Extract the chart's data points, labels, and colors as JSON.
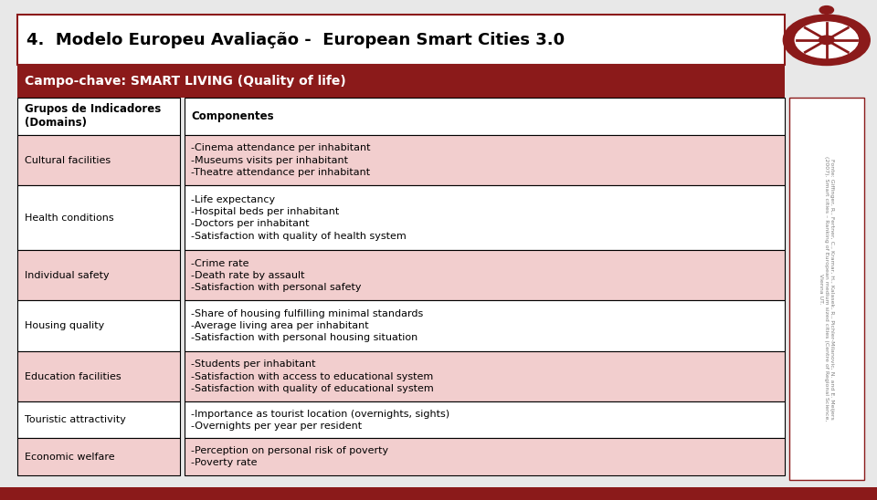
{
  "title": "4.  Modelo Europeu Avaliação -  European Smart Cities 3.0",
  "campo_chave": "Campo-chave: SMART LIVING (Quality of life)",
  "col1_header": "Grupos de Indicadores\n(Domains)",
  "col2_header": "Componentes",
  "rows": [
    {
      "domain": "Cultural facilities",
      "components": "-Cinema attendance per inhabitant\n-Museums visits per inhabitant\n-Theatre attendance per inhabitant",
      "shaded": true
    },
    {
      "domain": "Health conditions",
      "components": "-Life expectancy\n-Hospital beds per inhabitant\n-Doctors per inhabitant\n-Satisfaction with quality of health system",
      "shaded": false
    },
    {
      "domain": "Individual safety",
      "components": "-Crime rate\n-Death rate by assault\n-Satisfaction with personal safety",
      "shaded": true
    },
    {
      "domain": "Housing quality",
      "components": "-Share of housing fulfilling minimal standards\n-Average living area per inhabitant\n-Satisfaction with personal housing situation",
      "shaded": false
    },
    {
      "domain": "Education facilities",
      "components": "-Students per inhabitant\n-Satisfaction with access to educational system\n-Satisfaction with quality of educational system",
      "shaded": true
    },
    {
      "domain": "Touristic attractivity",
      "components": "-Importance as tourist location (overnights, sights)\n-Overnights per year per resident",
      "shaded": false
    },
    {
      "domain": "Economic welfare",
      "components": "-Perception on personal risk of poverty\n-Poverty rate",
      "shaded": true
    }
  ],
  "fonte_text": "Fonte: Giffinger, R., Fertner, C., Kramar, H., Kalasek, R., Pichler-Milanovic, N. and E. Meijers\n(2007). Smart cities – Ranking of European medium sized cities (Centre of Regional Science,\nVienna UT.",
  "dark_red": "#8B1A1A",
  "light_pink": "#F2CECE",
  "white": "#FFFFFF",
  "bg_color": "#F0F0F0",
  "border_color": "#8B1A1A",
  "title_bg": "#FFFFFF",
  "title_border": "#8B1A1A",
  "header_bg": "#8B1A1A",
  "header_fg": "#FFFFFF"
}
